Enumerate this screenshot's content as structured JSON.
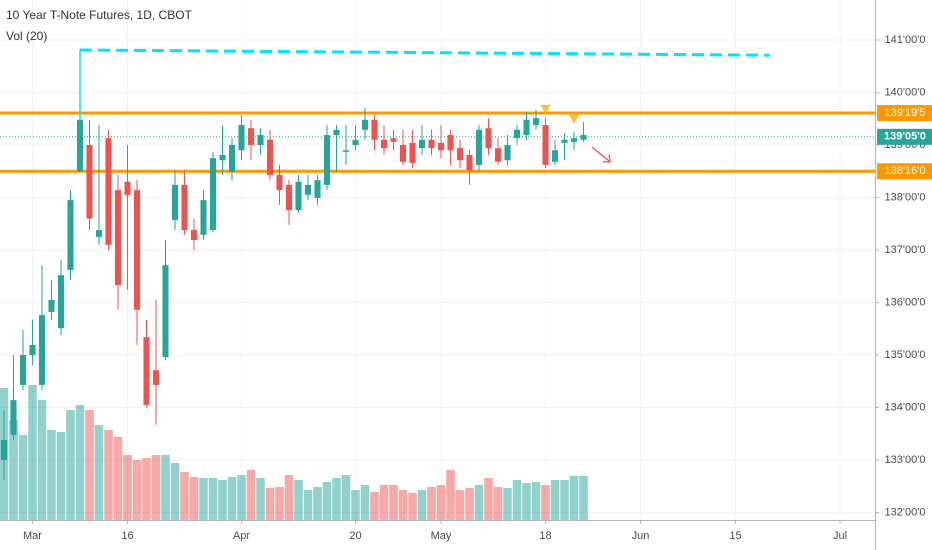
{
  "chart_data": {
    "type": "candlestick",
    "title": "10 Year T-Note Futures, 1D, CBOT",
    "subtitle": "Vol (20)",
    "open": [
      133.0,
      133.48,
      134.43,
      135.0,
      134.43,
      135.82,
      135.51,
      136.62,
      138.49,
      139.0,
      137.25,
      139.13,
      138.14,
      138.3,
      138.14,
      135.34,
      134.71,
      134.96,
      137.57,
      138.24,
      137.38,
      137.29,
      137.38,
      138.71,
      138.49,
      138.9,
      139.32,
      139.0,
      139.1,
      138.43,
      138.24,
      137.76,
      138.05,
      137.99,
      138.24,
      139.19,
      138.87,
      139.0,
      139.29,
      139.48,
      139.1,
      139.13,
      139.0,
      139.04,
      138.94,
      139.1,
      139.04,
      139.19,
      138.94,
      138.81,
      138.62,
      139.32,
      138.94,
      138.71,
      139.13,
      139.19,
      139.38,
      139.38,
      138.68,
      139.04,
      139.06,
      139.1
    ],
    "high": [
      133.95,
      135.0,
      135.48,
      135.67,
      136.71,
      136.43,
      136.81,
      138.14,
      140.81,
      139.48,
      139.38,
      139.29,
      138.43,
      139.0,
      138.33,
      135.67,
      136.05,
      137.19,
      138.52,
      138.52,
      137.6,
      138.14,
      138.87,
      139.38,
      139.13,
      139.57,
      139.48,
      139.32,
      139.29,
      138.62,
      138.33,
      138.43,
      138.43,
      138.43,
      139.38,
      139.38,
      139.38,
      139.38,
      139.71,
      139.57,
      139.38,
      139.29,
      139.29,
      139.29,
      139.38,
      139.29,
      139.38,
      139.29,
      139.1,
      138.9,
      139.38,
      139.51,
      139.13,
      139.19,
      139.38,
      139.63,
      139.67,
      139.51,
      139.1,
      139.23,
      139.25,
      139.44
    ],
    "low": [
      132.62,
      133.38,
      134.33,
      134.81,
      134.33,
      135.67,
      135.38,
      136.43,
      138.49,
      137.38,
      137.1,
      137.0,
      135.86,
      136.24,
      135.19,
      134.0,
      133.67,
      134.9,
      137.38,
      137.29,
      137.0,
      137.19,
      137.34,
      138.43,
      138.33,
      138.71,
      138.71,
      138.81,
      138.33,
      137.86,
      137.48,
      137.72,
      137.95,
      137.86,
      138.14,
      138.49,
      138.62,
      138.9,
      139.1,
      138.9,
      138.81,
      138.9,
      138.62,
      138.56,
      138.81,
      138.81,
      138.75,
      138.62,
      138.56,
      138.24,
      138.49,
      138.81,
      138.62,
      138.62,
      139.0,
      139.1,
      139.29,
      138.56,
      138.62,
      138.71,
      138.9,
      139.06
    ],
    "close": [
      133.38,
      134.14,
      135.0,
      135.19,
      135.76,
      136.05,
      136.52,
      137.95,
      139.48,
      137.6,
      137.38,
      137.1,
      136.33,
      138.05,
      135.86,
      134.05,
      134.43,
      136.71,
      138.24,
      137.38,
      137.19,
      137.95,
      138.75,
      138.81,
      139.0,
      139.38,
      139.0,
      139.19,
      138.43,
      138.14,
      137.76,
      138.3,
      138.24,
      138.33,
      139.19,
      139.29,
      138.9,
      139.1,
      139.48,
      139.1,
      138.94,
      139.06,
      138.68,
      138.66,
      139.1,
      138.94,
      138.9,
      138.9,
      138.71,
      138.52,
      139.29,
      138.94,
      138.68,
      139.0,
      139.29,
      139.48,
      139.51,
      138.62,
      138.9,
      139.1,
      139.13,
      139.19
    ],
    "volume": [
      132,
      100,
      85,
      135,
      120,
      90,
      88,
      110,
      115,
      110,
      95,
      90,
      83,
      65,
      60,
      62,
      65,
      65,
      57,
      48,
      43,
      42,
      42,
      40,
      43,
      45,
      50,
      42,
      32,
      33,
      45,
      40,
      30,
      33,
      38,
      42,
      45,
      30,
      35,
      28,
      35,
      35,
      30,
      27,
      30,
      33,
      35,
      50,
      30,
      32,
      35,
      42,
      33,
      32,
      40,
      37,
      38,
      35,
      40,
      40,
      44,
      44
    ],
    "up_color": "#26a69a",
    "down_color": "#ef5350",
    "xlim": [
      -0.42,
      91.68
    ],
    "ylim": [
      131.857,
      141.762
    ],
    "vlim": [
      0,
      520
    ],
    "xticks": [
      {
        "value": 3,
        "label": "Mar"
      },
      {
        "value": 13,
        "label": "16"
      },
      {
        "value": 25,
        "label": "Apr"
      },
      {
        "value": 37,
        "label": "20"
      },
      {
        "value": 46,
        "label": "May"
      },
      {
        "value": 57,
        "label": "18"
      },
      {
        "value": 67,
        "label": "Jun"
      },
      {
        "value": 77,
        "label": "15"
      },
      {
        "value": 88,
        "label": "Jul"
      }
    ],
    "yticks": [
      {
        "value": 141,
        "label": "141'00'0"
      },
      {
        "value": 140,
        "label": "140'00'0"
      },
      {
        "value": 139,
        "label": "139'00'0"
      },
      {
        "value": 138,
        "label": "138'00'0"
      },
      {
        "value": 137,
        "label": "137'00'0"
      },
      {
        "value": 136,
        "label": "136'00'0"
      },
      {
        "value": 135,
        "label": "135'00'0"
      },
      {
        "value": 134,
        "label": "134'00'0"
      },
      {
        "value": 133,
        "label": "133'00'0"
      },
      {
        "value": 132,
        "label": "132'00'0"
      }
    ],
    "grid": true,
    "levels": [
      {
        "value": 139.609,
        "label": "139'19'5",
        "color": "#ff9800"
      },
      {
        "value": 138.5,
        "label": "138'16'0",
        "color": "#ff9800"
      }
    ],
    "last_price": {
      "value": 139.156,
      "label": "139'05'0",
      "color": "#26a69a"
    },
    "trendline": {
      "x": [
        8,
        80.6
      ],
      "y": [
        140.81,
        140.71
      ],
      "color": "#00e5ff"
    },
    "markers": {
      "x": [
        57,
        60
      ],
      "y": [
        139.67,
        139.48
      ],
      "color": "#fbc02d"
    },
    "arrow": {
      "x": [
        61.9,
        63.8
      ],
      "y": [
        138.96,
        138.68
      ],
      "color": "#ef5350"
    }
  }
}
